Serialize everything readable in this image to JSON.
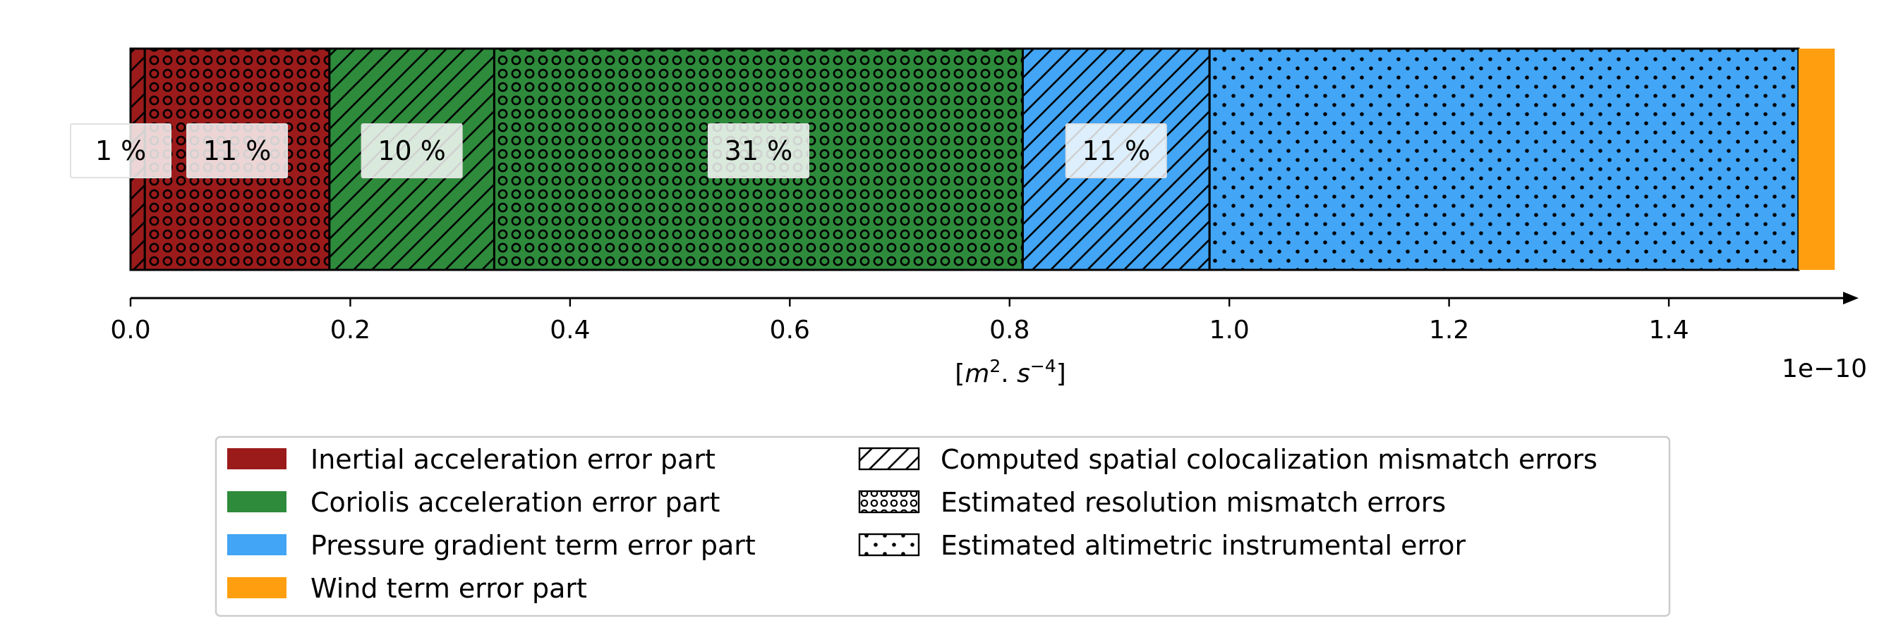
{
  "chart_data": {
    "type": "bar",
    "orientation": "horizontal-stacked",
    "xlabel": "[m2.s-4]",
    "xlabel_parts": {
      "open": "[",
      "m": "m",
      "m_exp": "2",
      "dot": ". ",
      "s": "s",
      "s_exp": "−4",
      "close": "]"
    },
    "x_multiplier": "1e−10",
    "xlim": [
      0.0,
      1.55
    ],
    "xticks": [
      "0.0",
      "0.2",
      "0.4",
      "0.6",
      "0.8",
      "1.0",
      "1.2",
      "1.4"
    ],
    "segments": [
      {
        "term": "Inertial acceleration error part",
        "error": "Computed spatial colocalization mismatch errors",
        "start": 0.0,
        "end": 0.013,
        "color": "#9b1b1b",
        "hatch": "diagonal",
        "label": "1 %"
      },
      {
        "term": "Inertial acceleration error part",
        "error": "Estimated resolution mismatch errors",
        "start": 0.013,
        "end": 0.181,
        "color": "#9b1b1b",
        "hatch": "circles",
        "label": "11 %"
      },
      {
        "term": "Coriolis acceleration error part",
        "error": "Computed spatial colocalization mismatch errors",
        "start": 0.181,
        "end": 0.331,
        "color": "#2e8b3c",
        "hatch": "diagonal",
        "label": "10 %"
      },
      {
        "term": "Coriolis acceleration error part",
        "error": "Estimated resolution mismatch errors",
        "start": 0.331,
        "end": 0.812,
        "color": "#2e8b3c",
        "hatch": "circles",
        "label": "31 %"
      },
      {
        "term": "Pressure gradient term error part",
        "error": "Computed spatial colocalization mismatch errors",
        "start": 0.812,
        "end": 0.982,
        "color": "#42a5f5",
        "hatch": "diagonal",
        "label": "11 %"
      },
      {
        "term": "Pressure gradient term error part",
        "error": "Estimated altimetric instrumental error",
        "start": 0.982,
        "end": 1.518,
        "color": "#42a5f5",
        "hatch": "dots",
        "label": ""
      },
      {
        "term": "Wind term error part",
        "error": "",
        "start": 1.518,
        "end": 1.551,
        "color": "#ff9f0f",
        "hatch": "none",
        "label": ""
      }
    ],
    "legend": {
      "placement": "bottom-center",
      "colors": [
        {
          "label": "Inertial acceleration error part",
          "color": "#9b1b1b"
        },
        {
          "label": "Coriolis acceleration error part",
          "color": "#2e8b3c"
        },
        {
          "label": "Pressure gradient term error part",
          "color": "#42a5f5"
        },
        {
          "label": "Wind term error part",
          "color": "#ff9f0f"
        }
      ],
      "hatches": [
        {
          "label": "Computed spatial colocalization mismatch errors",
          "hatch": "diagonal"
        },
        {
          "label": "Estimated resolution mismatch errors",
          "hatch": "circles"
        },
        {
          "label": "Estimated altimetric instrumental error",
          "hatch": "dots"
        }
      ]
    }
  }
}
